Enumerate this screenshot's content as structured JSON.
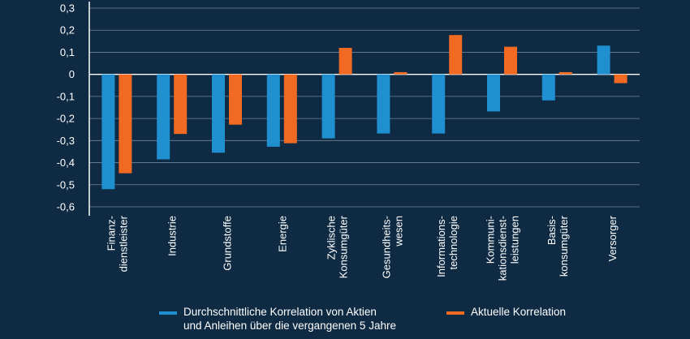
{
  "chart_data": {
    "type": "bar",
    "title": "",
    "xlabel": "",
    "ylabel": "",
    "ylim": [
      -0.6,
      0.3
    ],
    "yticks": [
      "0,3",
      "0,2",
      "0,1",
      "0",
      "-0,1",
      "-0,2",
      "-0,3",
      "-0,4",
      "-0,5",
      "-0,6"
    ],
    "ytick_values": [
      0.3,
      0.2,
      0.1,
      0,
      -0.1,
      -0.2,
      -0.3,
      -0.4,
      -0.5,
      -0.6
    ],
    "categories": [
      [
        "Finanz-",
        "dienstleister"
      ],
      [
        "Industrie"
      ],
      [
        "Grundstoffe"
      ],
      [
        "Energie"
      ],
      [
        "Zyklische",
        "Konsumgüter"
      ],
      [
        "Gesundheits-",
        "wesen"
      ],
      [
        "Informations-",
        "technologie"
      ],
      [
        "Kommuni-",
        "kationsdienst-",
        "leistungen"
      ],
      [
        "Basis-",
        "konsumgüter"
      ],
      [
        "Versorger"
      ]
    ],
    "series": [
      {
        "name": "Durchschnittliche Korrelation von Aktien und Anleihen über die vergangenen 5 Jahre",
        "legend_lines": [
          "Durchschnittliche Korrelation von Aktien",
          "und Anleihen über die vergangenen 5 Jahre"
        ],
        "color": "#1f8fd0",
        "values": [
          -0.52,
          -0.385,
          -0.355,
          -0.328,
          -0.29,
          -0.268,
          -0.268,
          -0.168,
          -0.118,
          0.13
        ]
      },
      {
        "name": "Aktuelle Korrelation",
        "legend_lines": [
          "Aktuelle Korrelation"
        ],
        "color": "#f26a21",
        "values": [
          -0.448,
          -0.27,
          -0.228,
          -0.312,
          0.12,
          0.01,
          0.178,
          0.125,
          0.01,
          -0.04
        ]
      }
    ],
    "grid": true,
    "legend_position": "bottom"
  }
}
